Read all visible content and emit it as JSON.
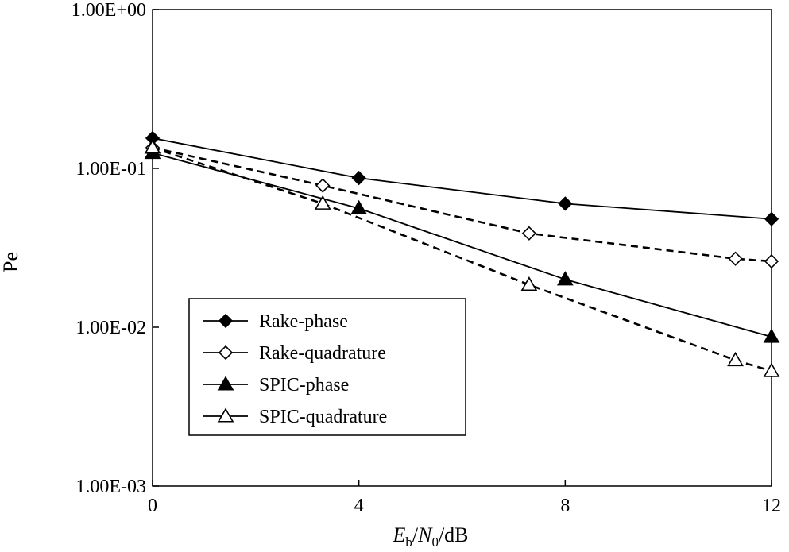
{
  "chart_data": {
    "type": "line",
    "xlabel": {
      "var": "E",
      "sub": "b",
      "sep": "/",
      "var2": "N",
      "sub2": "0",
      "unit": "/dB"
    },
    "ylabel": "Pe",
    "xlim": [
      0,
      12
    ],
    "ylim": [
      0.001,
      1
    ],
    "yscale": "log",
    "grid": false,
    "legend_position": "lower-left",
    "x_ticks": [
      "0",
      "4",
      "8",
      "12"
    ],
    "y_ticks": [
      "1.00E+00",
      "1.00E-01",
      "1.00E-02",
      "1.00E-03"
    ],
    "y_tick_values": [
      1,
      0.1,
      0.01,
      0.001
    ],
    "series": [
      {
        "name": "Rake-phase",
        "marker": "diamond-filled",
        "line": "solid",
        "x": [
          0,
          4,
          8,
          12
        ],
        "y": [
          0.155,
          0.087,
          0.06,
          0.048
        ]
      },
      {
        "name": "Rake-quadrature",
        "marker": "diamond-open",
        "line": "dashed",
        "x": [
          0,
          3.3,
          7.3,
          11.3,
          12
        ],
        "y": [
          0.135,
          0.078,
          0.039,
          0.027,
          0.026
        ]
      },
      {
        "name": "SPIC-phase",
        "marker": "triangle-filled",
        "line": "solid",
        "x": [
          0,
          4,
          8,
          12
        ],
        "y": [
          0.125,
          0.056,
          0.02,
          0.0087
        ]
      },
      {
        "name": "SPIC-quadrature",
        "marker": "triangle-open",
        "line": "dashed",
        "x": [
          0,
          3.3,
          7.3,
          11.3,
          12
        ],
        "y": [
          0.135,
          0.06,
          0.0185,
          0.0062,
          0.0053
        ]
      }
    ]
  }
}
